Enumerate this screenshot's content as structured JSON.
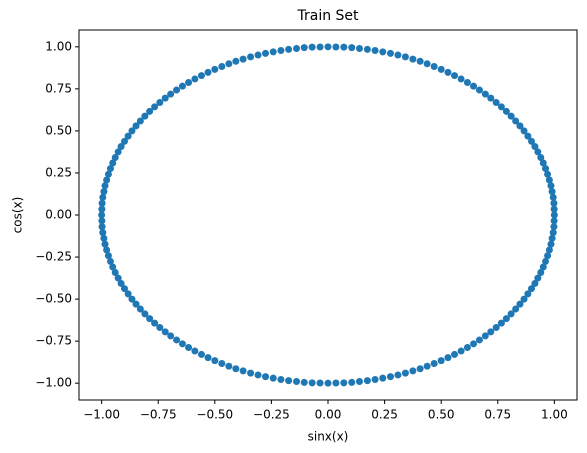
{
  "chart_data": {
    "type": "scatter",
    "title": "Train Set",
    "x_label": "sinx(x)",
    "y_label": "cos(x)",
    "xlim": [
      -1.1,
      1.1
    ],
    "ylim": [
      -1.1,
      1.1
    ],
    "xticks": [
      {
        "value": -1,
        "label": "−1.00"
      },
      {
        "value": -0.75,
        "label": "−0.75"
      },
      {
        "value": -0.5,
        "label": "−0.50"
      },
      {
        "value": -0.25,
        "label": "−0.25"
      },
      {
        "value": 0,
        "label": "0.00"
      },
      {
        "value": 0.25,
        "label": "0.25"
      },
      {
        "value": 0.5,
        "label": "0.50"
      },
      {
        "value": 0.75,
        "label": "0.75"
      },
      {
        "value": 1,
        "label": "1.00"
      }
    ],
    "yticks": [
      {
        "value": -1,
        "label": "−1.00"
      },
      {
        "value": -0.75,
        "label": "−0.75"
      },
      {
        "value": -0.5,
        "label": "−0.50"
      },
      {
        "value": -0.25,
        "label": "−0.25"
      },
      {
        "value": 0,
        "label": "0.00"
      },
      {
        "value": 0.25,
        "label": "0.25"
      },
      {
        "value": 0.5,
        "label": "0.50"
      },
      {
        "value": 0.75,
        "label": "0.75"
      },
      {
        "value": 1,
        "label": "1.00"
      }
    ],
    "color": "#1f77b4",
    "grid": false,
    "x": [
      0,
      0.035,
      0.07,
      0.105,
      0.139,
      0.174,
      0.208,
      0.242,
      0.276,
      0.309,
      0.342,
      0.375,
      0.407,
      0.438,
      0.469,
      0.5,
      0.53,
      0.559,
      0.588,
      0.616,
      0.643,
      0.669,
      0.695,
      0.719,
      0.743,
      0.766,
      0.788,
      0.809,
      0.829,
      0.848,
      0.866,
      0.883,
      0.899,
      0.914,
      0.927,
      0.94,
      0.951,
      0.961,
      0.97,
      0.978,
      0.985,
      0.99,
      0.995,
      0.998,
      0.999,
      1,
      0.999,
      0.998,
      0.995,
      0.99,
      0.985,
      0.978,
      0.97,
      0.961,
      0.951,
      0.94,
      0.927,
      0.914,
      0.899,
      0.883,
      0.866,
      0.848,
      0.829,
      0.809,
      0.788,
      0.766,
      0.743,
      0.719,
      0.695,
      0.669,
      0.643,
      0.616,
      0.588,
      0.559,
      0.53,
      0.5,
      0.469,
      0.438,
      0.407,
      0.375,
      0.342,
      0.309,
      0.276,
      0.242,
      0.208,
      0.174,
      0.139,
      0.105,
      0.07,
      0.035,
      0,
      -0.035,
      -0.07,
      -0.105,
      -0.139,
      -0.174,
      -0.208,
      -0.242,
      -0.276,
      -0.309,
      -0.342,
      -0.375,
      -0.407,
      -0.438,
      -0.469,
      -0.5,
      -0.53,
      -0.559,
      -0.588,
      -0.616,
      -0.643,
      -0.669,
      -0.695,
      -0.719,
      -0.743,
      -0.766,
      -0.788,
      -0.809,
      -0.829,
      -0.848,
      -0.866,
      -0.883,
      -0.899,
      -0.914,
      -0.927,
      -0.94,
      -0.951,
      -0.961,
      -0.97,
      -0.978,
      -0.985,
      -0.99,
      -0.995,
      -0.998,
      -0.999,
      -1,
      -0.999,
      -0.998,
      -0.995,
      -0.99,
      -0.985,
      -0.978,
      -0.97,
      -0.961,
      -0.951,
      -0.94,
      -0.927,
      -0.914,
      -0.899,
      -0.883,
      -0.866,
      -0.848,
      -0.829,
      -0.809,
      -0.788,
      -0.766,
      -0.743,
      -0.719,
      -0.695,
      -0.669,
      -0.643,
      -0.616,
      -0.588,
      -0.559,
      -0.53,
      -0.5,
      -0.469,
      -0.438,
      -0.407,
      -0.375,
      -0.342,
      -0.309,
      -0.276,
      -0.242,
      -0.208,
      -0.174,
      -0.139,
      -0.105,
      -0.07,
      -0.035
    ],
    "values": [
      1,
      0.999,
      0.998,
      0.995,
      0.99,
      0.985,
      0.978,
      0.97,
      0.961,
      0.951,
      0.94,
      0.927,
      0.914,
      0.899,
      0.883,
      0.866,
      0.848,
      0.829,
      0.809,
      0.788,
      0.766,
      0.743,
      0.719,
      0.695,
      0.669,
      0.643,
      0.616,
      0.588,
      0.559,
      0.53,
      0.5,
      0.469,
      0.438,
      0.407,
      0.375,
      0.342,
      0.309,
      0.276,
      0.242,
      0.208,
      0.174,
      0.139,
      0.105,
      0.07,
      0.035,
      0,
      -0.035,
      -0.07,
      -0.105,
      -0.139,
      -0.174,
      -0.208,
      -0.242,
      -0.276,
      -0.309,
      -0.342,
      -0.375,
      -0.407,
      -0.438,
      -0.469,
      -0.5,
      -0.53,
      -0.559,
      -0.588,
      -0.616,
      -0.643,
      -0.669,
      -0.695,
      -0.719,
      -0.743,
      -0.766,
      -0.788,
      -0.809,
      -0.829,
      -0.848,
      -0.866,
      -0.883,
      -0.899,
      -0.914,
      -0.927,
      -0.94,
      -0.951,
      -0.961,
      -0.97,
      -0.978,
      -0.985,
      -0.99,
      -0.995,
      -0.998,
      -0.999,
      -1,
      -0.999,
      -0.998,
      -0.995,
      -0.99,
      -0.985,
      -0.978,
      -0.97,
      -0.961,
      -0.951,
      -0.94,
      -0.927,
      -0.914,
      -0.899,
      -0.883,
      -0.866,
      -0.848,
      -0.829,
      -0.809,
      -0.788,
      -0.766,
      -0.743,
      -0.719,
      -0.695,
      -0.669,
      -0.643,
      -0.616,
      -0.588,
      -0.559,
      -0.53,
      -0.5,
      -0.469,
      -0.438,
      -0.407,
      -0.375,
      -0.342,
      -0.309,
      -0.276,
      -0.242,
      -0.208,
      -0.174,
      -0.139,
      -0.105,
      -0.07,
      -0.035,
      0,
      0.035,
      0.07,
      0.105,
      0.139,
      0.174,
      0.208,
      0.242,
      0.276,
      0.309,
      0.342,
      0.375,
      0.407,
      0.438,
      0.469,
      0.5,
      0.53,
      0.559,
      0.588,
      0.616,
      0.643,
      0.669,
      0.695,
      0.719,
      0.743,
      0.766,
      0.788,
      0.809,
      0.829,
      0.848,
      0.866,
      0.883,
      0.899,
      0.914,
      0.927,
      0.94,
      0.951,
      0.961,
      0.97,
      0.978,
      0.985,
      0.99,
      0.995,
      0.998,
      0.999
    ]
  }
}
